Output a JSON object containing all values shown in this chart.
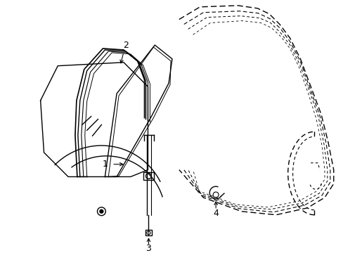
{
  "background_color": "#ffffff",
  "line_color": "#000000",
  "label_color": "#000000",
  "figsize": [
    4.89,
    3.6
  ],
  "dpi": 100
}
